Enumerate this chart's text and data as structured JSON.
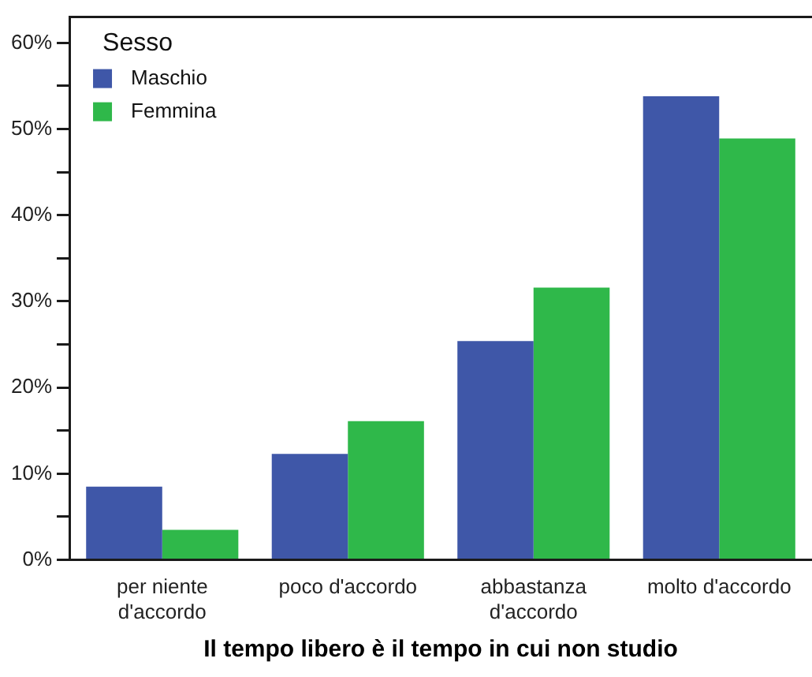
{
  "chart_data": {
    "type": "bar",
    "xlabel": "Il tempo libero è il tempo in cui non studio",
    "legend_title": "Sesso",
    "legend": "top left",
    "grid": false,
    "categories": [
      "per niente d'accordo",
      "poco d'accordo",
      "abbastanza d'accordo",
      "molto d'accordo"
    ],
    "series": [
      {
        "name": "Maschio",
        "color": "#3f57a8",
        "values": [
          8.5,
          12.3,
          25.4,
          53.8
        ]
      },
      {
        "name": "Femmina",
        "color": "#2fb84a",
        "values": [
          3.5,
          16.1,
          31.6,
          48.9
        ]
      }
    ],
    "ylim": [
      0,
      63
    ],
    "yticks": [
      {
        "value": 0,
        "label": "0%"
      },
      {
        "value": 5,
        "label": null
      },
      {
        "value": 10,
        "label": "10%"
      },
      {
        "value": 15,
        "label": null
      },
      {
        "value": 20,
        "label": "20%"
      },
      {
        "value": 25,
        "label": null
      },
      {
        "value": 30,
        "label": "30%"
      },
      {
        "value": 35,
        "label": null
      },
      {
        "value": 40,
        "label": "40%"
      },
      {
        "value": 45,
        "label": null
      },
      {
        "value": 50,
        "label": "50%"
      },
      {
        "value": 55,
        "label": null
      },
      {
        "value": 60,
        "label": "60%"
      }
    ]
  }
}
